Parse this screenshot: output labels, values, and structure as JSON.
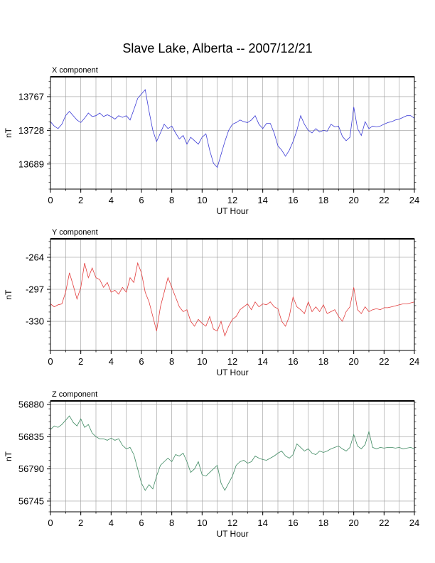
{
  "title": "Slave Lake, Alberta -- 2007/12/21",
  "chart_data": [
    {
      "type": "line",
      "panel_title": "X component",
      "xlabel": "UT Hour",
      "ylabel": "nT",
      "color": "#3b3bd6",
      "xlim": [
        0,
        24
      ],
      "ylim": [
        13660,
        13790
      ],
      "xticks": [
        "0",
        "2",
        "4",
        "6",
        "8",
        "10",
        "12",
        "14",
        "16",
        "18",
        "20",
        "22",
        "24"
      ],
      "yticks": [
        "13767",
        "13728",
        "13689"
      ],
      "ytick_values": [
        13767,
        13728,
        13689
      ],
      "grid": true,
      "x": [
        0,
        0.25,
        0.5,
        0.75,
        1,
        1.25,
        1.5,
        1.75,
        2,
        2.25,
        2.5,
        2.75,
        3,
        3.25,
        3.5,
        3.75,
        4,
        4.25,
        4.5,
        4.75,
        5,
        5.25,
        5.5,
        5.75,
        6,
        6.25,
        6.5,
        6.75,
        7,
        7.25,
        7.5,
        7.75,
        8,
        8.25,
        8.5,
        8.75,
        9,
        9.25,
        9.5,
        9.75,
        10,
        10.25,
        10.5,
        10.75,
        11,
        11.25,
        11.5,
        11.75,
        12,
        12.25,
        12.5,
        12.75,
        13,
        13.25,
        13.5,
        13.75,
        14,
        14.25,
        14.5,
        14.75,
        15,
        15.25,
        15.5,
        15.75,
        16,
        16.25,
        16.5,
        16.75,
        17,
        17.25,
        17.5,
        17.75,
        18,
        18.25,
        18.5,
        18.75,
        19,
        19.25,
        19.5,
        19.75,
        20,
        20.25,
        20.5,
        20.75,
        21,
        21.25,
        21.5,
        21.75,
        22,
        22.25,
        22.5,
        22.75,
        23,
        23.25,
        23.5,
        23.75,
        24
      ],
      "values": [
        13738,
        13733,
        13730,
        13735,
        13745,
        13750,
        13745,
        13740,
        13737,
        13742,
        13748,
        13744,
        13745,
        13748,
        13744,
        13746,
        13744,
        13741,
        13745,
        13743,
        13745,
        13740,
        13752,
        13765,
        13770,
        13775,
        13750,
        13728,
        13715,
        13725,
        13735,
        13730,
        13733,
        13725,
        13718,
        13722,
        13712,
        13720,
        13716,
        13712,
        13720,
        13724,
        13705,
        13690,
        13685,
        13700,
        13715,
        13728,
        13735,
        13737,
        13740,
        13738,
        13737,
        13740,
        13745,
        13735,
        13730,
        13736,
        13736,
        13725,
        13710,
        13705,
        13698,
        13705,
        13715,
        13728,
        13745,
        13735,
        13728,
        13725,
        13730,
        13726,
        13728,
        13727,
        13735,
        13732,
        13733,
        13721,
        13716,
        13720,
        13755,
        13730,
        13722,
        13738,
        13730,
        13733,
        13732,
        13733,
        13735,
        13737,
        13738,
        13740,
        13741,
        13743,
        13745,
        13745,
        13742
      ]
    },
    {
      "type": "line",
      "panel_title": "Y component",
      "xlabel": "UT Hour",
      "ylabel": "nT",
      "color": "#e23c3c",
      "xlim": [
        0,
        24
      ],
      "ylim": [
        -360,
        -245
      ],
      "xticks": [
        "0",
        "2",
        "4",
        "6",
        "8",
        "10",
        "12",
        "14",
        "16",
        "18",
        "20",
        "22",
        "24"
      ],
      "yticks": [
        "-264",
        "-297",
        "-330"
      ],
      "ytick_values": [
        -264,
        -297,
        -330
      ],
      "grid": true,
      "x": [
        0,
        0.25,
        0.5,
        0.75,
        1,
        1.25,
        1.5,
        1.75,
        2,
        2.25,
        2.5,
        2.75,
        3,
        3.25,
        3.5,
        3.75,
        4,
        4.25,
        4.5,
        4.75,
        5,
        5.25,
        5.5,
        5.75,
        6,
        6.25,
        6.5,
        6.75,
        7,
        7.25,
        7.5,
        7.75,
        8,
        8.25,
        8.5,
        8.75,
        9,
        9.25,
        9.5,
        9.75,
        10,
        10.25,
        10.5,
        10.75,
        11,
        11.25,
        11.5,
        11.75,
        12,
        12.25,
        12.5,
        12.75,
        13,
        13.25,
        13.5,
        13.75,
        14,
        14.25,
        14.5,
        14.75,
        15,
        15.25,
        15.5,
        15.75,
        16,
        16.25,
        16.5,
        16.75,
        17,
        17.25,
        17.5,
        17.75,
        18,
        18.25,
        18.5,
        18.75,
        19,
        19.25,
        19.5,
        19.75,
        20,
        20.25,
        20.5,
        20.75,
        21,
        21.25,
        21.5,
        21.75,
        22,
        22.25,
        22.5,
        22.75,
        23,
        23.25,
        23.5,
        23.75,
        24
      ],
      "values": [
        -312,
        -315,
        -313,
        -312,
        -300,
        -280,
        -293,
        -307,
        -295,
        -270,
        -285,
        -275,
        -285,
        -287,
        -295,
        -290,
        -300,
        -298,
        -302,
        -295,
        -300,
        -285,
        -290,
        -270,
        -280,
        -300,
        -310,
        -325,
        -340,
        -315,
        -300,
        -285,
        -295,
        -305,
        -315,
        -320,
        -318,
        -330,
        -335,
        -328,
        -332,
        -335,
        -325,
        -338,
        -340,
        -330,
        -345,
        -335,
        -328,
        -325,
        -318,
        -315,
        -312,
        -318,
        -310,
        -315,
        -312,
        -313,
        -310,
        -315,
        -317,
        -330,
        -335,
        -325,
        -305,
        -315,
        -318,
        -322,
        -310,
        -320,
        -315,
        -320,
        -313,
        -322,
        -320,
        -318,
        -325,
        -330,
        -320,
        -315,
        -295,
        -318,
        -322,
        -315,
        -320,
        -318,
        -317,
        -318,
        -316,
        -316,
        -315,
        -314,
        -313,
        -312,
        -312,
        -311,
        -310
      ]
    },
    {
      "type": "line",
      "panel_title": "Z component",
      "xlabel": "UT Hour",
      "ylabel": "nT",
      "color": "#3f8a62",
      "xlim": [
        0,
        24
      ],
      "ylim": [
        56730,
        56885
      ],
      "xticks": [
        "0",
        "2",
        "4",
        "6",
        "8",
        "10",
        "12",
        "14",
        "16",
        "18",
        "20",
        "22",
        "24"
      ],
      "yticks": [
        "56880",
        "56835",
        "56790",
        "56745"
      ],
      "ytick_values": [
        56880,
        56835,
        56790,
        56745
      ],
      "grid": true,
      "x": [
        0,
        0.25,
        0.5,
        0.75,
        1,
        1.25,
        1.5,
        1.75,
        2,
        2.25,
        2.5,
        2.75,
        3,
        3.25,
        3.5,
        3.75,
        4,
        4.25,
        4.5,
        4.75,
        5,
        5.25,
        5.5,
        5.75,
        6,
        6.25,
        6.5,
        6.75,
        7,
        7.25,
        7.5,
        7.75,
        8,
        8.25,
        8.5,
        8.75,
        9,
        9.25,
        9.5,
        9.75,
        10,
        10.25,
        10.5,
        10.75,
        11,
        11.25,
        11.5,
        11.75,
        12,
        12.25,
        12.5,
        12.75,
        13,
        13.25,
        13.5,
        13.75,
        14,
        14.25,
        14.5,
        14.75,
        15,
        15.25,
        15.5,
        15.75,
        16,
        16.25,
        16.5,
        16.75,
        17,
        17.25,
        17.5,
        17.75,
        18,
        18.25,
        18.5,
        18.75,
        19,
        19.25,
        19.5,
        19.75,
        20,
        20.25,
        20.5,
        20.75,
        21,
        21.25,
        21.5,
        21.75,
        22,
        22.25,
        22.5,
        22.75,
        23,
        23.25,
        23.5,
        23.75,
        24
      ],
      "values": [
        56845,
        56850,
        56848,
        56852,
        56858,
        56864,
        56855,
        56850,
        56860,
        56848,
        56852,
        56840,
        56835,
        56832,
        56832,
        56830,
        56833,
        56830,
        56832,
        56823,
        56818,
        56820,
        56810,
        56790,
        56770,
        56760,
        56768,
        56762,
        56780,
        56795,
        56800,
        56805,
        56800,
        56810,
        56808,
        56812,
        56800,
        56785,
        56790,
        56800,
        56782,
        56780,
        56785,
        56790,
        56795,
        56770,
        56760,
        56770,
        56780,
        56795,
        56800,
        56802,
        56798,
        56800,
        56808,
        56805,
        56803,
        56802,
        56805,
        56808,
        56812,
        56815,
        56808,
        56805,
        56810,
        56825,
        56820,
        56815,
        56818,
        56812,
        56810,
        56815,
        56813,
        56815,
        56818,
        56820,
        56822,
        56818,
        56815,
        56820,
        56838,
        56822,
        56818,
        56824,
        56842,
        56820,
        56818,
        56820,
        56819,
        56820,
        56820,
        56819,
        56820,
        56818,
        56819,
        56820,
        56818
      ]
    }
  ]
}
